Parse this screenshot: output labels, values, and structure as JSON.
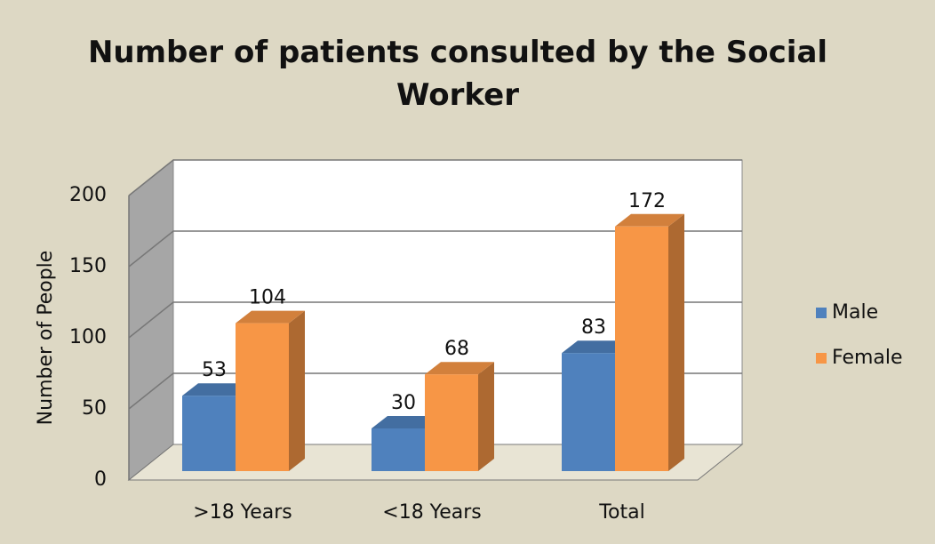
{
  "chart_data": {
    "type": "bar3d",
    "title": "Number of patients consulted by the Social Worker",
    "y_label": "Number of People",
    "categories": [
      ">18 Years",
      "<18 Years",
      "Total"
    ],
    "series": [
      {
        "name": "Male",
        "color": "#4f81bd",
        "values": [
          53,
          30,
          83
        ]
      },
      {
        "name": "Female",
        "color": "#f79646",
        "values": [
          104,
          68,
          172
        ]
      }
    ],
    "ylim": [
      0,
      200
    ],
    "yticks": [
      0,
      50,
      100,
      150,
      200
    ],
    "grid": true,
    "legend": "right"
  }
}
